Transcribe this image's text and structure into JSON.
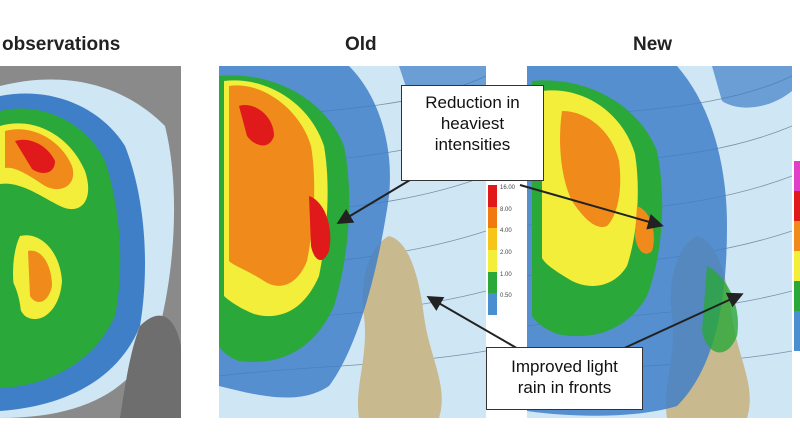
{
  "titles": {
    "observations": "observations",
    "old": "Old",
    "new": "New"
  },
  "callouts": {
    "reduction": [
      "Reduction in",
      "heaviest",
      "intensities"
    ],
    "light_rain": [
      "Improved light",
      "rain in fronts"
    ]
  },
  "colorbar": {
    "colors": [
      "#e01a1a",
      "#f07a10",
      "#f7c51a",
      "#f2ee3a",
      "#2aa83a",
      "#4a8fd0"
    ],
    "tick_labels": [
      "16.00",
      "8.00",
      "4.00",
      "2.00",
      "1.00",
      "0.50"
    ]
  },
  "colors": {
    "sea": "#cfe6f5",
    "land": "#c9b98e",
    "obs_background": "#8b8b8b",
    "heavy_rain": "#f08a1a",
    "moderate_rain": "#2aa83a",
    "light_rain": "#3f7fc8"
  }
}
